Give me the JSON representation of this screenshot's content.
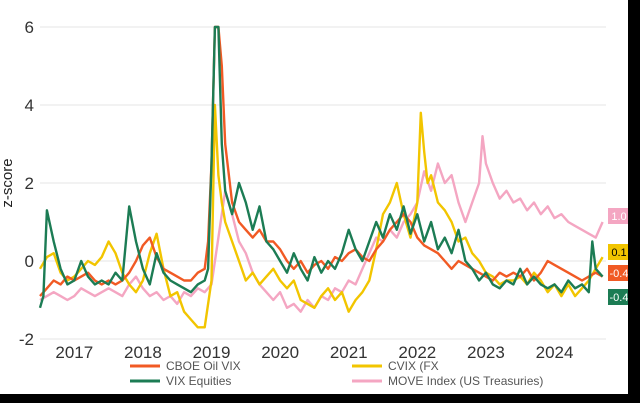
{
  "chart_data": {
    "type": "line",
    "ylabel": "z-score",
    "ylim": [
      -2,
      6
    ],
    "yticks": [
      "-2",
      "0",
      "2",
      "4",
      "6"
    ],
    "xlim": [
      2016.5,
      2024.75
    ],
    "xticks": [
      "2017",
      "2018",
      "2019",
      "2020",
      "2021",
      "2022",
      "2023",
      "2024"
    ],
    "grid": true,
    "legend_position": "bottom",
    "series": [
      {
        "name": "CBOE Oil VIX",
        "color": "#F15A24",
        "end_label": "-0.4",
        "x": [
          2016.5,
          2016.6,
          2016.7,
          2016.8,
          2016.9,
          2017.0,
          2017.1,
          2017.2,
          2017.3,
          2017.4,
          2017.5,
          2017.6,
          2017.7,
          2017.8,
          2017.9,
          2018.0,
          2018.1,
          2018.2,
          2018.3,
          2018.4,
          2018.5,
          2018.6,
          2018.7,
          2018.8,
          2018.9,
          2018.95,
          2019.0,
          2019.05,
          2019.1,
          2019.15,
          2019.2,
          2019.3,
          2019.4,
          2019.5,
          2019.6,
          2019.7,
          2019.8,
          2019.9,
          2020.0,
          2020.1,
          2020.2,
          2020.3,
          2020.4,
          2020.5,
          2020.6,
          2020.7,
          2020.8,
          2020.9,
          2021.0,
          2021.1,
          2021.2,
          2021.3,
          2021.4,
          2021.5,
          2021.6,
          2021.7,
          2021.8,
          2021.9,
          2022.0,
          2022.1,
          2022.2,
          2022.3,
          2022.4,
          2022.5,
          2022.6,
          2022.7,
          2022.8,
          2022.9,
          2023.0,
          2023.1,
          2023.2,
          2023.3,
          2023.4,
          2023.5,
          2023.6,
          2023.7,
          2023.8,
          2023.9,
          2024.0,
          2024.1,
          2024.2,
          2024.3,
          2024.4,
          2024.5,
          2024.6,
          2024.7
        ],
        "values": [
          -0.9,
          -0.7,
          -0.5,
          -0.6,
          -0.4,
          -0.5,
          -0.4,
          -0.3,
          -0.5,
          -0.6,
          -0.5,
          -0.6,
          -0.5,
          -0.3,
          0.0,
          0.4,
          0.6,
          0.1,
          -0.2,
          -0.3,
          -0.4,
          -0.5,
          -0.5,
          -0.3,
          -0.2,
          0.5,
          2.5,
          6.0,
          6.0,
          5.0,
          3.0,
          1.5,
          1.0,
          0.8,
          0.6,
          0.8,
          0.5,
          0.5,
          0.3,
          0.0,
          -0.2,
          0.0,
          -0.3,
          -0.1,
          0.0,
          -0.2,
          0.1,
          0.0,
          0.2,
          0.3,
          0.1,
          0.0,
          0.3,
          0.5,
          0.8,
          1.0,
          1.2,
          1.0,
          0.6,
          0.4,
          0.3,
          0.2,
          0.0,
          -0.2,
          0.0,
          -0.1,
          -0.2,
          -0.3,
          -0.4,
          -0.5,
          -0.3,
          -0.4,
          -0.3,
          -0.4,
          -0.2,
          -0.5,
          -0.3,
          0.0,
          -0.1,
          -0.2,
          -0.3,
          -0.4,
          -0.5,
          -0.4,
          -0.3,
          -0.4
        ]
      },
      {
        "name": "CVIX (FX",
        "color": "#F2C500",
        "end_label": "0.1",
        "x": [
          2016.5,
          2016.6,
          2016.7,
          2016.8,
          2016.9,
          2017.0,
          2017.1,
          2017.2,
          2017.3,
          2017.4,
          2017.5,
          2017.6,
          2017.7,
          2017.8,
          2017.9,
          2018.0,
          2018.1,
          2018.2,
          2018.3,
          2018.4,
          2018.5,
          2018.6,
          2018.7,
          2018.8,
          2018.9,
          2019.0,
          2019.05,
          2019.1,
          2019.15,
          2019.2,
          2019.3,
          2019.4,
          2019.5,
          2019.6,
          2019.7,
          2019.8,
          2019.9,
          2020.0,
          2020.1,
          2020.2,
          2020.3,
          2020.4,
          2020.5,
          2020.6,
          2020.7,
          2020.8,
          2020.9,
          2021.0,
          2021.1,
          2021.2,
          2021.3,
          2021.4,
          2021.5,
          2021.6,
          2021.7,
          2021.8,
          2021.9,
          2022.0,
          2022.05,
          2022.1,
          2022.15,
          2022.2,
          2022.3,
          2022.4,
          2022.5,
          2022.6,
          2022.7,
          2022.8,
          2022.9,
          2023.0,
          2023.1,
          2023.2,
          2023.3,
          2023.4,
          2023.5,
          2023.6,
          2023.7,
          2023.8,
          2023.9,
          2024.0,
          2024.1,
          2024.2,
          2024.3,
          2024.4,
          2024.5,
          2024.6,
          2024.7
        ],
        "values": [
          -0.2,
          0.1,
          0.2,
          -0.3,
          -0.5,
          -0.4,
          -0.2,
          0.0,
          -0.1,
          0.1,
          0.5,
          0.2,
          -0.3,
          -0.6,
          -0.8,
          -0.5,
          0.2,
          0.7,
          -0.2,
          -0.9,
          -0.8,
          -1.3,
          -1.5,
          -1.7,
          -1.7,
          -0.5,
          4.0,
          2.2,
          1.5,
          1.0,
          0.5,
          0.0,
          -0.5,
          -0.3,
          -0.6,
          -0.4,
          -0.2,
          -0.5,
          -0.7,
          -0.5,
          -1.0,
          -1.1,
          -1.2,
          -0.9,
          -0.7,
          -1.0,
          -0.8,
          -1.3,
          -1.0,
          -0.8,
          -0.5,
          0.3,
          1.2,
          1.5,
          2.0,
          1.2,
          0.6,
          1.5,
          3.8,
          2.8,
          2.0,
          2.2,
          1.5,
          1.3,
          1.0,
          0.5,
          0.6,
          0.2,
          0.0,
          -0.3,
          -0.4,
          -0.6,
          -0.5,
          -0.5,
          -0.4,
          -0.6,
          -0.3,
          -0.5,
          -0.8,
          -0.6,
          -0.9,
          -0.6,
          -0.9,
          -0.7,
          -0.5,
          -0.2,
          0.1
        ]
      },
      {
        "name": "VIX Equities",
        "color": "#1C7C54",
        "end_label": "-0.4",
        "x": [
          2016.5,
          2016.55,
          2016.6,
          2016.7,
          2016.8,
          2016.9,
          2017.0,
          2017.1,
          2017.2,
          2017.3,
          2017.4,
          2017.5,
          2017.6,
          2017.7,
          2017.8,
          2017.9,
          2018.0,
          2018.05,
          2018.1,
          2018.2,
          2018.3,
          2018.4,
          2018.5,
          2018.6,
          2018.7,
          2018.8,
          2018.9,
          2018.95,
          2019.0,
          2019.05,
          2019.1,
          2019.15,
          2019.2,
          2019.3,
          2019.4,
          2019.5,
          2019.6,
          2019.7,
          2019.8,
          2019.9,
          2020.0,
          2020.1,
          2020.2,
          2020.3,
          2020.4,
          2020.5,
          2020.6,
          2020.7,
          2020.8,
          2020.9,
          2021.0,
          2021.1,
          2021.2,
          2021.3,
          2021.4,
          2021.5,
          2021.6,
          2021.7,
          2021.8,
          2021.9,
          2022.0,
          2022.1,
          2022.2,
          2022.3,
          2022.4,
          2022.5,
          2022.6,
          2022.7,
          2022.8,
          2022.9,
          2023.0,
          2023.1,
          2023.2,
          2023.3,
          2023.4,
          2023.5,
          2023.6,
          2023.7,
          2023.8,
          2023.9,
          2024.0,
          2024.1,
          2024.2,
          2024.3,
          2024.4,
          2024.5,
          2024.55,
          2024.6,
          2024.7
        ],
        "values": [
          -1.2,
          -0.9,
          1.3,
          0.5,
          -0.2,
          -0.6,
          -0.5,
          0.0,
          -0.4,
          -0.6,
          -0.5,
          -0.6,
          -0.3,
          -0.5,
          1.4,
          0.5,
          -0.2,
          -0.4,
          -0.6,
          0.2,
          -0.3,
          -0.5,
          -0.6,
          -0.7,
          -0.8,
          -0.6,
          -0.5,
          -0.2,
          2.5,
          6.0,
          6.0,
          3.0,
          1.8,
          1.2,
          2.0,
          1.5,
          0.8,
          1.4,
          0.5,
          0.3,
          0.0,
          -0.3,
          0.2,
          -0.2,
          -0.5,
          0.1,
          -0.3,
          0.0,
          -0.2,
          0.2,
          0.8,
          0.3,
          0.0,
          0.5,
          1.0,
          0.6,
          1.2,
          0.8,
          1.4,
          0.7,
          1.2,
          0.5,
          1.0,
          0.3,
          0.6,
          0.2,
          0.8,
          0.0,
          -0.2,
          -0.5,
          -0.3,
          -0.6,
          -0.7,
          -0.5,
          -0.6,
          -0.2,
          -0.6,
          -0.4,
          -0.6,
          -0.7,
          -0.6,
          -0.8,
          -0.5,
          -0.7,
          -0.6,
          -0.8,
          0.5,
          -0.2,
          -0.4
        ]
      },
      {
        "name": "MOVE Index (US Treasuries)",
        "color": "#F4A6C2",
        "end_label": "1.0",
        "x": [
          2016.5,
          2016.6,
          2016.7,
          2016.8,
          2016.9,
          2017.0,
          2017.1,
          2017.2,
          2017.3,
          2017.4,
          2017.5,
          2017.6,
          2017.7,
          2017.8,
          2017.9,
          2018.0,
          2018.1,
          2018.2,
          2018.3,
          2018.4,
          2018.5,
          2018.6,
          2018.7,
          2018.8,
          2018.9,
          2019.0,
          2019.1,
          2019.2,
          2019.3,
          2019.4,
          2019.5,
          2019.6,
          2019.7,
          2019.8,
          2019.9,
          2020.0,
          2020.1,
          2020.2,
          2020.3,
          2020.4,
          2020.5,
          2020.6,
          2020.7,
          2020.8,
          2020.9,
          2021.0,
          2021.1,
          2021.2,
          2021.3,
          2021.4,
          2021.5,
          2021.6,
          2021.7,
          2021.8,
          2021.9,
          2022.0,
          2022.1,
          2022.2,
          2022.3,
          2022.4,
          2022.5,
          2022.6,
          2022.7,
          2022.8,
          2022.9,
          2022.95,
          2023.0,
          2023.1,
          2023.2,
          2023.3,
          2023.4,
          2023.5,
          2023.6,
          2023.7,
          2023.8,
          2023.9,
          2024.0,
          2024.1,
          2024.2,
          2024.3,
          2024.4,
          2024.5,
          2024.6,
          2024.7
        ],
        "values": [
          -1.0,
          -0.9,
          -0.8,
          -0.9,
          -1.0,
          -0.9,
          -0.7,
          -0.8,
          -0.9,
          -0.8,
          -0.7,
          -0.8,
          -0.9,
          -0.6,
          -0.4,
          -0.7,
          -0.9,
          -0.8,
          -1.0,
          -0.9,
          -1.1,
          -0.8,
          -0.9,
          -0.7,
          -0.8,
          -0.6,
          0.6,
          1.8,
          1.2,
          0.5,
          0.2,
          -0.3,
          -0.6,
          -0.8,
          -1.0,
          -0.8,
          -1.2,
          -1.1,
          -1.3,
          -1.0,
          -1.2,
          -0.9,
          -1.0,
          -0.7,
          -0.8,
          -0.5,
          -0.6,
          -0.2,
          0.2,
          0.6,
          0.5,
          0.8,
          0.6,
          1.0,
          1.2,
          1.5,
          2.3,
          1.8,
          2.5,
          2.0,
          2.2,
          1.5,
          1.0,
          1.5,
          2.0,
          3.2,
          2.5,
          2.0,
          1.6,
          1.8,
          1.5,
          1.6,
          1.3,
          1.5,
          1.2,
          1.4,
          1.1,
          1.2,
          1.0,
          0.9,
          0.8,
          0.7,
          0.6,
          1.0
        ]
      }
    ]
  }
}
